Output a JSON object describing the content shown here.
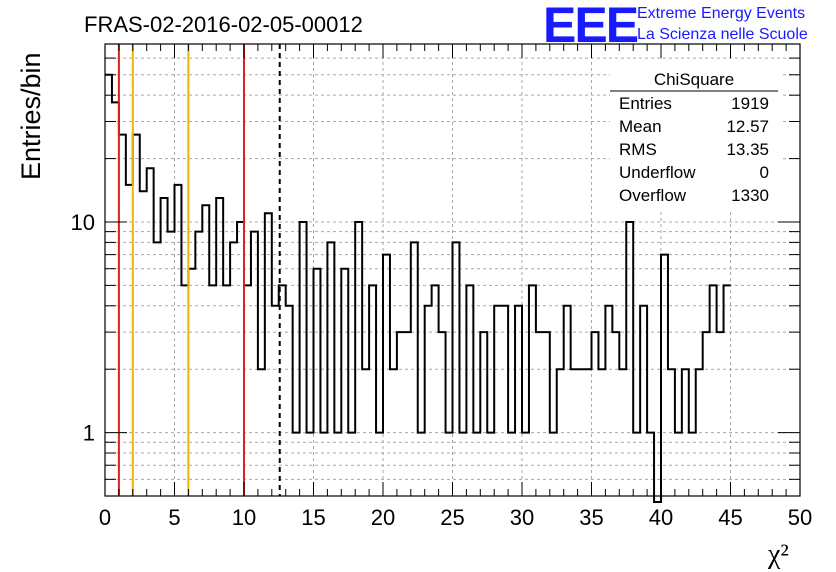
{
  "chart_data": {
    "type": "histogram",
    "title": "FRAS-02-2016-02-05-00012",
    "xlabel": "χ²",
    "ylabel": "Entries/bin",
    "xlim": [
      0,
      50
    ],
    "ylim": [
      0.5,
      70
    ],
    "yscale": "log",
    "grid": true,
    "bin_width": 0.5,
    "x_ticks": [
      "0",
      "5",
      "10",
      "15",
      "20",
      "25",
      "30",
      "35",
      "40",
      "45",
      "50"
    ],
    "y_ticks": [
      "1",
      "10"
    ],
    "bin_counts": [
      50,
      37,
      26,
      15,
      26,
      14,
      18,
      8,
      13,
      9,
      15,
      5,
      6,
      9,
      12,
      5,
      13,
      5,
      8,
      10,
      5,
      9,
      2,
      11,
      4,
      5,
      4,
      1,
      10,
      1,
      6,
      1,
      8,
      1,
      6,
      1,
      10,
      2,
      5,
      1,
      7,
      2,
      3,
      3,
      8,
      1,
      4,
      5,
      3,
      1,
      8,
      1,
      5,
      1,
      3,
      1,
      4,
      4,
      1,
      4,
      1,
      5,
      3,
      3,
      1,
      2,
      4,
      2,
      2,
      2,
      3,
      2,
      4,
      3,
      2,
      10,
      1,
      4,
      1,
      0,
      7,
      2,
      1,
      2,
      1,
      2,
      3,
      5,
      3,
      5
    ],
    "vertical_lines": [
      {
        "x": 1,
        "color": "#dd2222",
        "style": "solid"
      },
      {
        "x": 2,
        "color": "#f0b400",
        "style": "solid"
      },
      {
        "x": 6,
        "color": "#f0b400",
        "style": "solid"
      },
      {
        "x": 10,
        "color": "#dd2222",
        "style": "solid"
      },
      {
        "x": 12.57,
        "color": "#000000",
        "style": "dashed"
      }
    ]
  },
  "logo": {
    "mark": "EEE",
    "line1": "Extreme Energy Events",
    "line2": "La Scienza nelle Scuole",
    "color": "#1a1aff"
  },
  "stats": {
    "name": "ChiSquare",
    "rows": [
      {
        "label": "Entries",
        "value": "1919"
      },
      {
        "label": "Mean",
        "value": "12.57"
      },
      {
        "label": "RMS",
        "value": "13.35"
      },
      {
        "label": "Underflow",
        "value": "0"
      },
      {
        "label": "Overflow",
        "value": "1330"
      }
    ]
  }
}
